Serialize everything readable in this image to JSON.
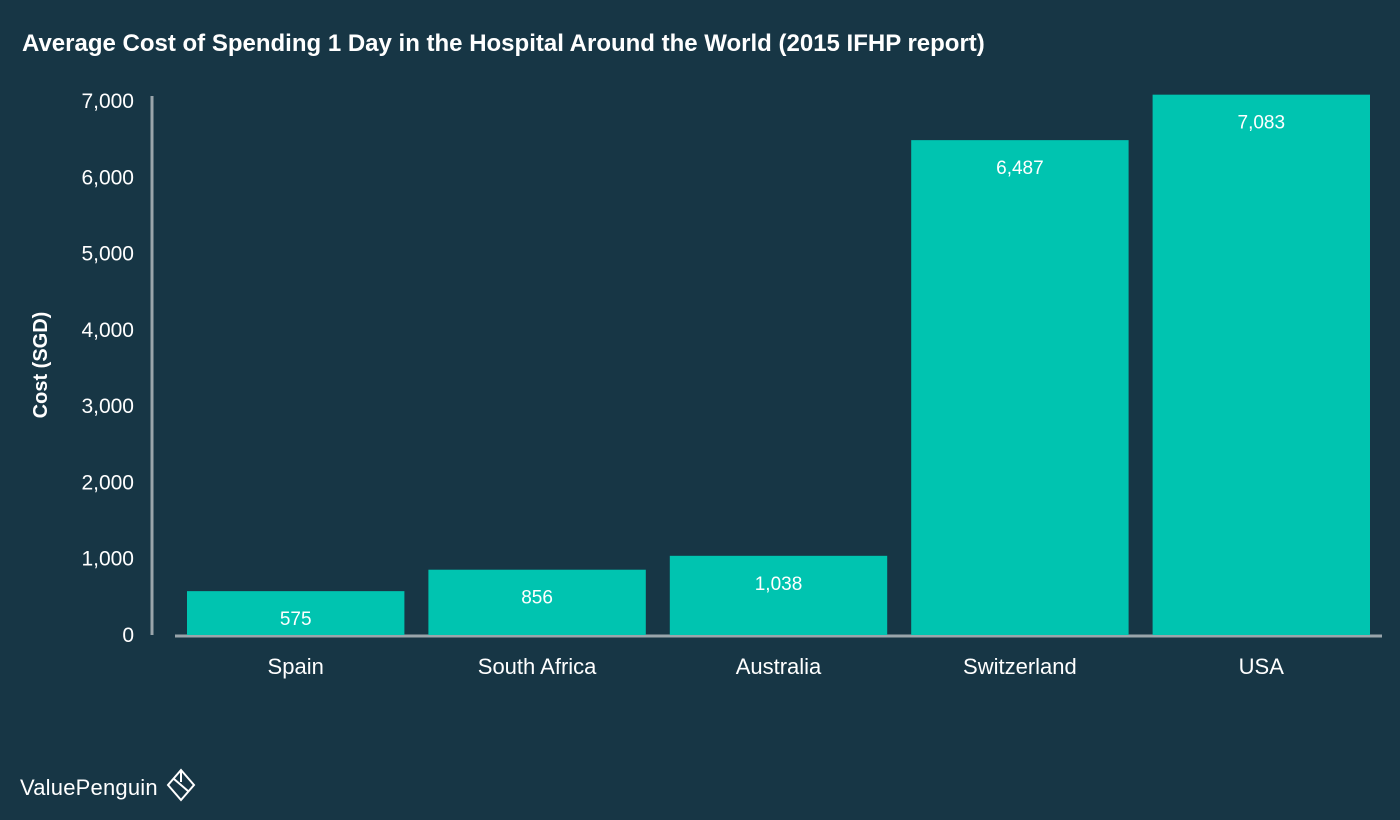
{
  "chart_data": {
    "type": "bar",
    "title": "Average Cost of Spending 1 Day in the Hospital Around the World (2015 IFHP report)",
    "xlabel": "",
    "ylabel": "Cost (SGD)",
    "categories": [
      "Spain",
      "South Africa",
      "Australia",
      "Switzerland",
      "USA"
    ],
    "values": [
      575,
      856,
      1038,
      6487,
      7083
    ],
    "value_labels": [
      "575",
      "856",
      "1,038",
      "6,487",
      "7,083"
    ],
    "ylim": [
      0,
      7000
    ],
    "yticks": [
      0,
      1000,
      2000,
      3000,
      4000,
      5000,
      6000,
      7000
    ],
    "ytick_labels": [
      "0",
      "1,000",
      "2,000",
      "3,000",
      "4,000",
      "5,000",
      "6,000",
      "7,000"
    ],
    "grid": false,
    "legend": "none",
    "colors": {
      "background": "#173645",
      "bar": "#00c4b0",
      "axis": "#9aa5ab",
      "text": "#ffffff"
    }
  },
  "brand": {
    "name": "ValuePenguin",
    "icon": "valuepenguin-logo-icon"
  }
}
